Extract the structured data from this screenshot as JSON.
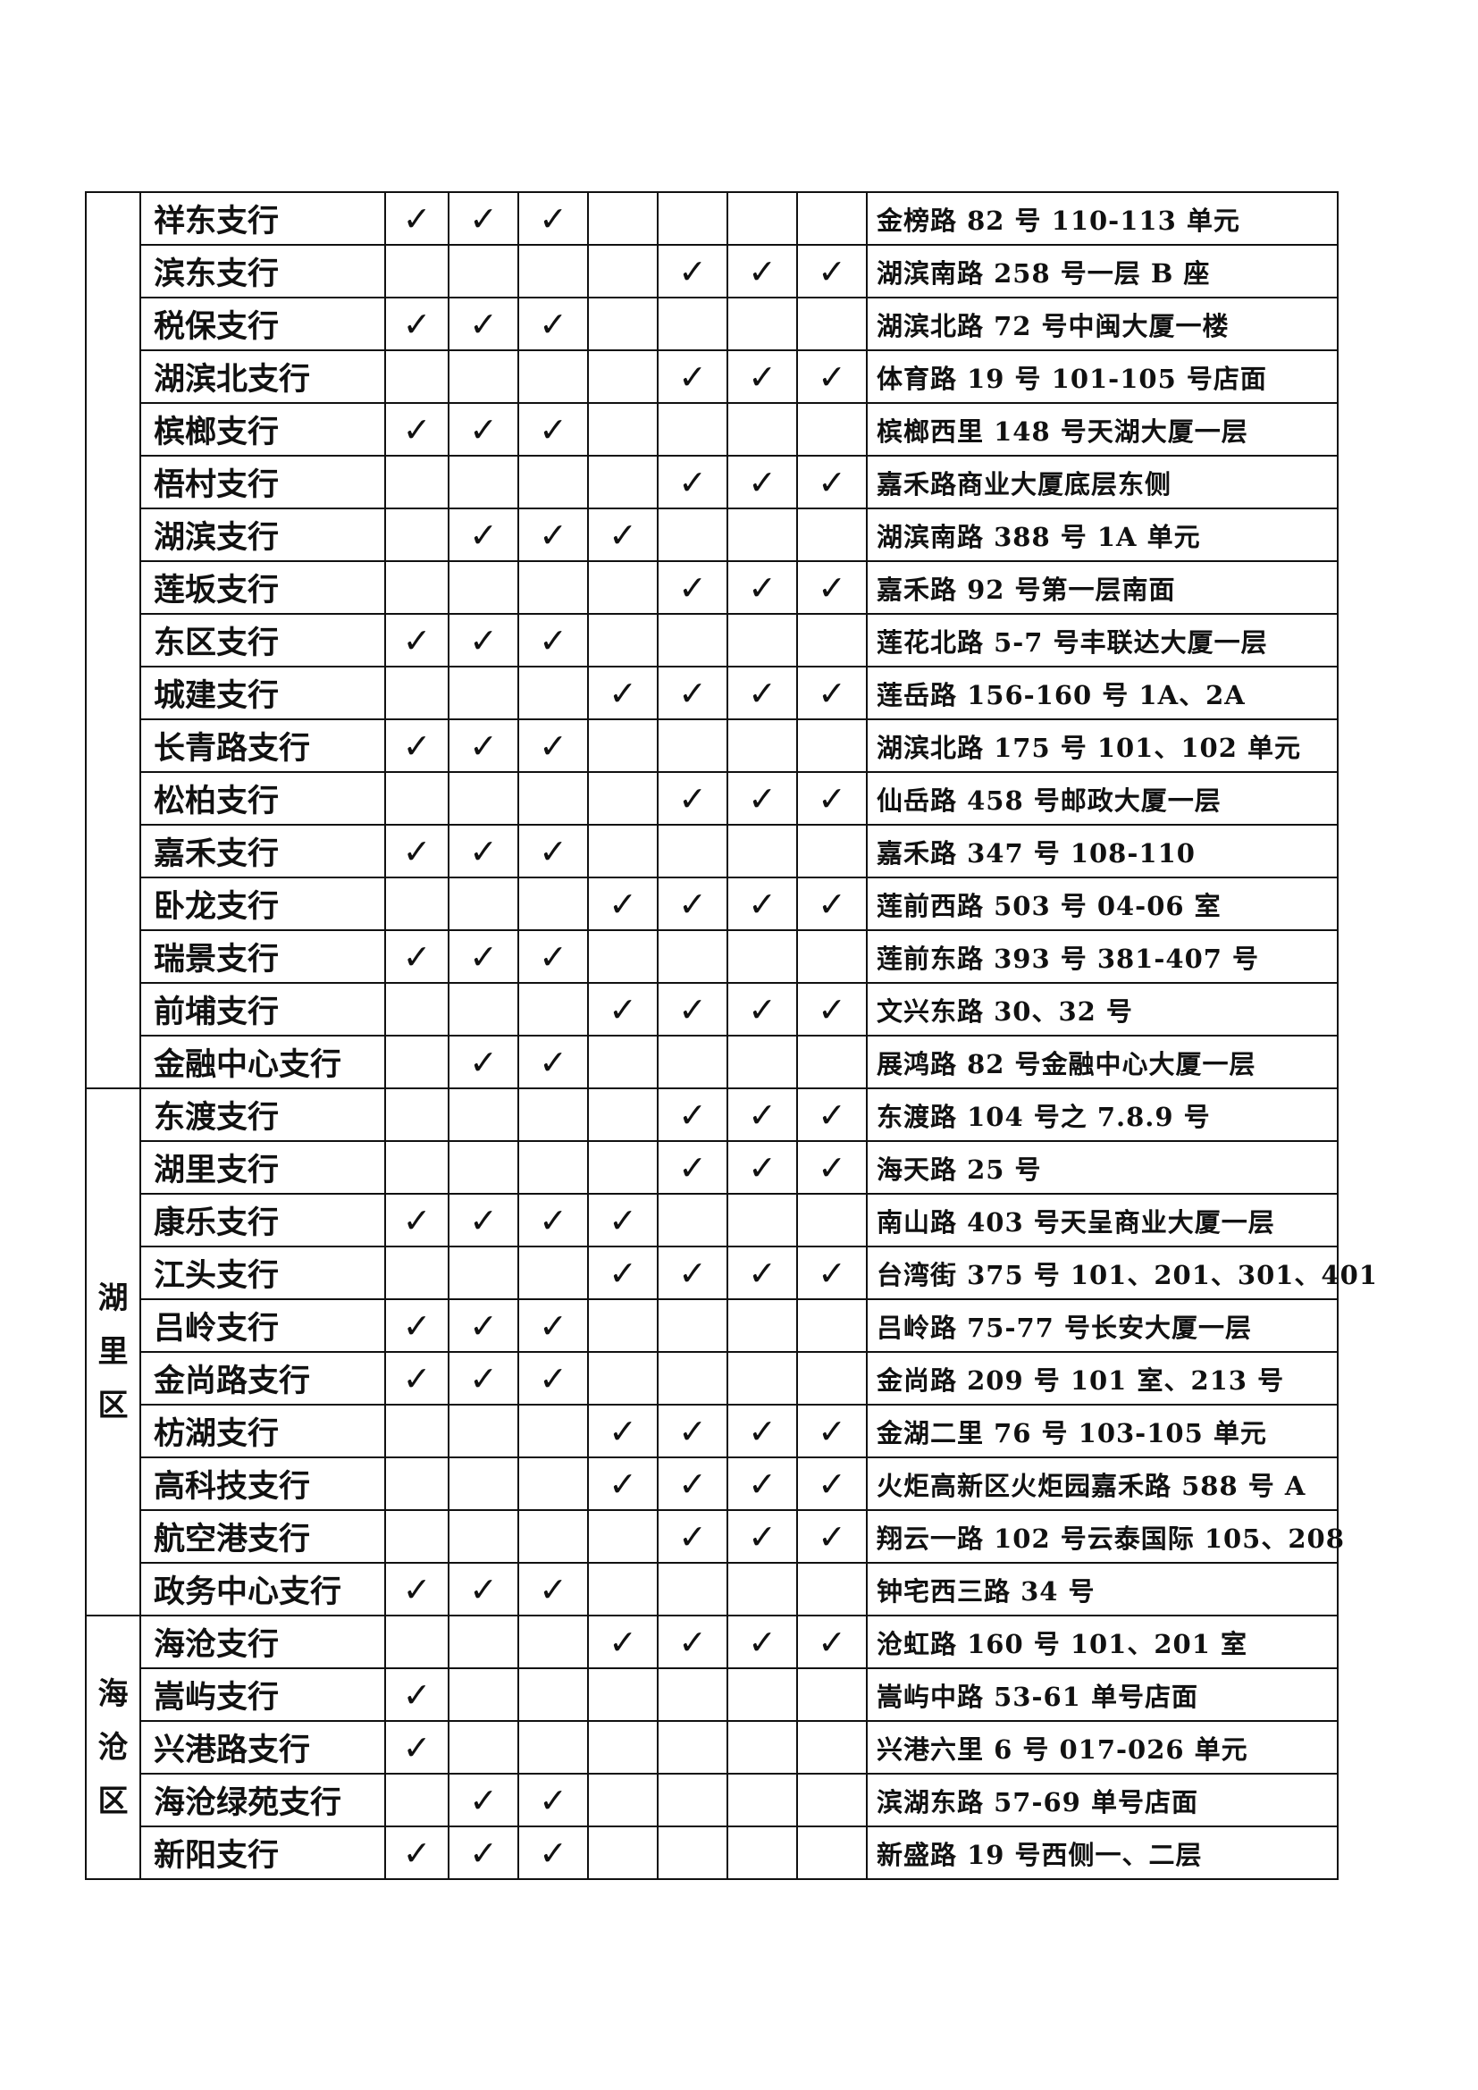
{
  "check_mark": "✓",
  "groups": [
    {
      "district": "",
      "rows": [
        {
          "name": "祥东支行",
          "checks": [
            1,
            1,
            1,
            0,
            0,
            0,
            0
          ],
          "address": "金榜路 82 号 110-113 单元"
        },
        {
          "name": "滨东支行",
          "checks": [
            0,
            0,
            0,
            0,
            1,
            1,
            1
          ],
          "address": "湖滨南路 258 号一层 B 座"
        },
        {
          "name": "税保支行",
          "checks": [
            1,
            1,
            1,
            0,
            0,
            0,
            0
          ],
          "address": "湖滨北路 72 号中闽大厦一楼"
        },
        {
          "name": "湖滨北支行",
          "checks": [
            0,
            0,
            0,
            0,
            1,
            1,
            1
          ],
          "address": "体育路 19 号 101-105 号店面"
        },
        {
          "name": "槟榔支行",
          "checks": [
            1,
            1,
            1,
            0,
            0,
            0,
            0
          ],
          "address": "槟榔西里 148 号天湖大厦一层"
        },
        {
          "name": "梧村支行",
          "checks": [
            0,
            0,
            0,
            0,
            1,
            1,
            1
          ],
          "address": "嘉禾路商业大厦底层东侧"
        },
        {
          "name": "湖滨支行",
          "checks": [
            0,
            1,
            1,
            1,
            0,
            0,
            0
          ],
          "address": "湖滨南路 388 号 1A 单元"
        },
        {
          "name": "莲坂支行",
          "checks": [
            0,
            0,
            0,
            0,
            1,
            1,
            1
          ],
          "address": "嘉禾路 92 号第一层南面"
        },
        {
          "name": "东区支行",
          "checks": [
            1,
            1,
            1,
            0,
            0,
            0,
            0
          ],
          "address": "莲花北路 5-7 号丰联达大厦一层"
        },
        {
          "name": "城建支行",
          "checks": [
            0,
            0,
            0,
            1,
            1,
            1,
            1
          ],
          "address": "莲岳路 156-160 号 1A、2A"
        },
        {
          "name": "长青路支行",
          "checks": [
            1,
            1,
            1,
            0,
            0,
            0,
            0
          ],
          "address": "湖滨北路 175 号 101、102 单元"
        },
        {
          "name": "松柏支行",
          "checks": [
            0,
            0,
            0,
            0,
            1,
            1,
            1
          ],
          "address": "仙岳路 458 号邮政大厦一层"
        },
        {
          "name": "嘉禾支行",
          "checks": [
            1,
            1,
            1,
            0,
            0,
            0,
            0
          ],
          "address": "嘉禾路 347 号 108-110"
        },
        {
          "name": "卧龙支行",
          "checks": [
            0,
            0,
            0,
            1,
            1,
            1,
            1
          ],
          "address": "莲前西路 503 号 04-06 室"
        },
        {
          "name": "瑞景支行",
          "checks": [
            1,
            1,
            1,
            0,
            0,
            0,
            0
          ],
          "address": "莲前东路 393 号 381-407 号"
        },
        {
          "name": "前埔支行",
          "checks": [
            0,
            0,
            0,
            1,
            1,
            1,
            1
          ],
          "address": "文兴东路 30、32 号"
        },
        {
          "name": "金融中心支行",
          "checks": [
            0,
            1,
            1,
            0,
            0,
            0,
            0
          ],
          "address": "展鸿路 82 号金融中心大厦一层"
        }
      ]
    },
    {
      "district": "湖里区",
      "rows": [
        {
          "name": "东渡支行",
          "checks": [
            0,
            0,
            0,
            0,
            1,
            1,
            1
          ],
          "address": "东渡路 104 号之 7.8.9 号"
        },
        {
          "name": "湖里支行",
          "checks": [
            0,
            0,
            0,
            0,
            1,
            1,
            1
          ],
          "address": "海天路 25 号"
        },
        {
          "name": "康乐支行",
          "checks": [
            1,
            1,
            1,
            1,
            0,
            0,
            0
          ],
          "address": "南山路 403 号天呈商业大厦一层"
        },
        {
          "name": "江头支行",
          "checks": [
            0,
            0,
            0,
            1,
            1,
            1,
            1
          ],
          "address": "台湾街 375 号 101、201、301、401"
        },
        {
          "name": "吕岭支行",
          "checks": [
            1,
            1,
            1,
            0,
            0,
            0,
            0
          ],
          "address": "吕岭路 75-77 号长安大厦一层"
        },
        {
          "name": "金尚路支行",
          "checks": [
            1,
            1,
            1,
            0,
            0,
            0,
            0
          ],
          "address": "金尚路 209 号 101 室、213 号"
        },
        {
          "name": "枋湖支行",
          "checks": [
            0,
            0,
            0,
            1,
            1,
            1,
            1
          ],
          "address": "金湖二里 76 号 103-105 单元"
        },
        {
          "name": "高科技支行",
          "checks": [
            0,
            0,
            0,
            1,
            1,
            1,
            1
          ],
          "address": "火炬高新区火炬园嘉禾路 588 号 A"
        },
        {
          "name": "航空港支行",
          "checks": [
            0,
            0,
            0,
            0,
            1,
            1,
            1
          ],
          "address": "翔云一路 102 号云泰国际 105、208"
        },
        {
          "name": "政务中心支行",
          "checks": [
            1,
            1,
            1,
            0,
            0,
            0,
            0
          ],
          "address": "钟宅西三路 34 号"
        }
      ]
    },
    {
      "district": "海沧区",
      "rows": [
        {
          "name": "海沧支行",
          "checks": [
            0,
            0,
            0,
            1,
            1,
            1,
            1
          ],
          "address": "沧虹路 160 号 101、201 室"
        },
        {
          "name": "嵩屿支行",
          "checks": [
            1,
            0,
            0,
            0,
            0,
            0,
            0
          ],
          "address": "嵩屿中路 53-61 单号店面"
        },
        {
          "name": "兴港路支行",
          "checks": [
            1,
            0,
            0,
            0,
            0,
            0,
            0
          ],
          "address": "兴港六里 6 号 017-026 单元"
        },
        {
          "name": "海沧绿苑支行",
          "checks": [
            0,
            1,
            1,
            0,
            0,
            0,
            0
          ],
          "address": "滨湖东路 57-69 单号店面"
        },
        {
          "name": "新阳支行",
          "checks": [
            1,
            1,
            1,
            0,
            0,
            0,
            0
          ],
          "address": "新盛路 19 号西侧一、二层"
        }
      ]
    }
  ]
}
